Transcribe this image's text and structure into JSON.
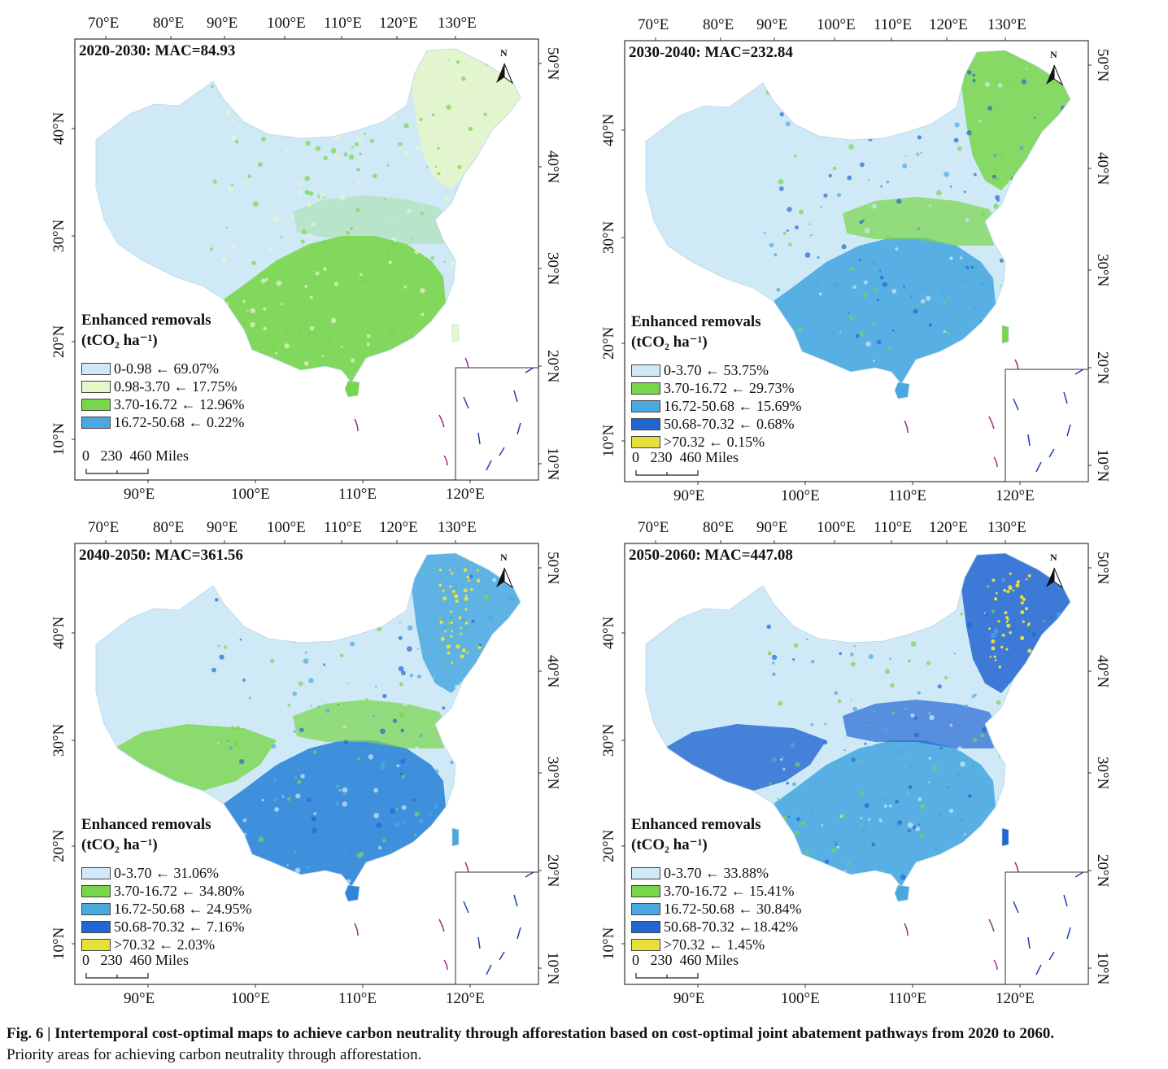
{
  "ticks": {
    "top_lon": [
      "70°E",
      "80°E",
      "90°E",
      "100°E",
      "110°E",
      "120°E",
      "130°E"
    ],
    "bottom_lon": [
      "90°E",
      "100°E",
      "110°E",
      "120°E"
    ],
    "left_lat": [
      "40°N",
      "30°N",
      "20°N",
      "10°N"
    ],
    "right_lat": [
      "50°N",
      "40°N",
      "30°N",
      "20°N",
      "10°N"
    ]
  },
  "legend_title_line1": "Enhanced removals",
  "legend_title_line2": "(tCO₂ ha⁻¹)",
  "scale_bar_label": "0   230  460 Miles",
  "north_label": "N",
  "panels": [
    {
      "title": "2020-2030: MAC=84.93",
      "legend": [
        {
          "label": "0-0.98 ← 69.07%",
          "color": "#cfe9f7"
        },
        {
          "label": "0.98-3.70 ← 17.75%",
          "color": "#e6f7c8"
        },
        {
          "label": "3.70-16.72 ← 12.96%",
          "color": "#79d64a"
        },
        {
          "label": "16.72-50.68 ← 0.22%",
          "color": "#4aa8e0"
        }
      ],
      "fill_mix": {
        "base": "#cfe9f7",
        "south": "#79d64a",
        "northeast": "#e6f7c8",
        "accent": "#79d64a"
      }
    },
    {
      "title": "2030-2040: MAC=232.84",
      "legend": [
        {
          "label": "0-3.70 ← 53.75%",
          "color": "#cfe9f7"
        },
        {
          "label": "3.70-16.72 ← 29.73%",
          "color": "#79d64a"
        },
        {
          "label": "16.72-50.68 ← 15.69%",
          "color": "#4aa8e0"
        },
        {
          "label": "50.68-70.32 ← 0.68%",
          "color": "#2366d1"
        },
        {
          "label": ">70.32 ← 0.15%",
          "color": "#e6e03a"
        }
      ],
      "fill_mix": {
        "base": "#cfe9f7",
        "south": "#4aa8e0",
        "northeast": "#79d64a",
        "accent": "#79d64a"
      }
    },
    {
      "title": "2040-2050: MAC=361.56",
      "legend": [
        {
          "label": "0-3.70 ← 31.06%",
          "color": "#cfe9f7"
        },
        {
          "label": "3.70-16.72 ← 34.80%",
          "color": "#79d64a"
        },
        {
          "label": "16.72-50.68 ← 24.95%",
          "color": "#4aa8e0"
        },
        {
          "label": "50.68-70.32 ← 7.16%",
          "color": "#2366d1"
        },
        {
          "label": ">70.32 ← 2.03%",
          "color": "#e6e03a"
        }
      ],
      "fill_mix": {
        "base": "#cfe9f7",
        "south": "#2f86d8",
        "northeast": "#4aa8e0",
        "accent": "#79d64a"
      }
    },
    {
      "title": "2050-2060: MAC=447.08",
      "legend": [
        {
          "label": "0-3.70 ← 33.88%",
          "color": "#cfe9f7"
        },
        {
          "label": "3.70-16.72 ← 15.41%",
          "color": "#79d64a"
        },
        {
          "label": "16.72-50.68 ← 30.84%",
          "color": "#4aa8e0"
        },
        {
          "label": "50.68-70.32 ←18.42%",
          "color": "#2366d1"
        },
        {
          "label": ">70.32 ← 1.45%",
          "color": "#e6e03a"
        }
      ],
      "fill_mix": {
        "base": "#cfe9f7",
        "south": "#4aa8e0",
        "northeast": "#2366d1",
        "accent": "#2366d1"
      }
    }
  ],
  "caption": {
    "bold": "Fig. 6 | Intertemporal cost-optimal maps to achieve carbon neutrality through afforestation based on cost-optimal joint abatement pathways from 2020 to 2060.",
    "normal": "Priority areas for achieving carbon neutrality through afforestation."
  }
}
